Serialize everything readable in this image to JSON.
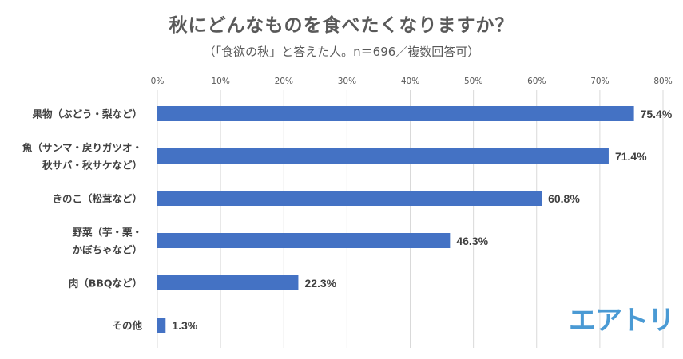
{
  "chart_data": {
    "type": "bar",
    "orientation": "horizontal",
    "title": "秋にどんなものを食べたくなりますか？",
    "subtitle": "（「食欲の秋」と答えた人。n＝696／複数回答可）",
    "categories": [
      [
        "果物（ぶどう・梨など）"
      ],
      [
        "魚（サンマ・戻りガツオ・",
        "秋サバ・秋サケなど）"
      ],
      [
        "きのこ（松茸など）"
      ],
      [
        "野菜（芋・栗・",
        "かぼちゃなど）"
      ],
      [
        "肉（BBQなど）"
      ],
      [
        "その他"
      ]
    ],
    "values": [
      75.4,
      71.4,
      60.8,
      46.3,
      22.3,
      1.3
    ],
    "data_labels": [
      "75.4%",
      "71.4%",
      "60.8%",
      "46.3%",
      "22.3%",
      "1.3%"
    ],
    "xlim": [
      0,
      80
    ],
    "xticks": [
      0,
      10,
      20,
      30,
      40,
      50,
      60,
      70,
      80
    ],
    "xtick_labels": [
      "0%",
      "10%",
      "20%",
      "30%",
      "40%",
      "50%",
      "60%",
      "70%",
      "80%"
    ],
    "xaxis_position": "top",
    "grid": true,
    "bar_color": "#4472C4"
  },
  "logo": {
    "text": "エアトリ",
    "color": "#4a9ad4"
  }
}
